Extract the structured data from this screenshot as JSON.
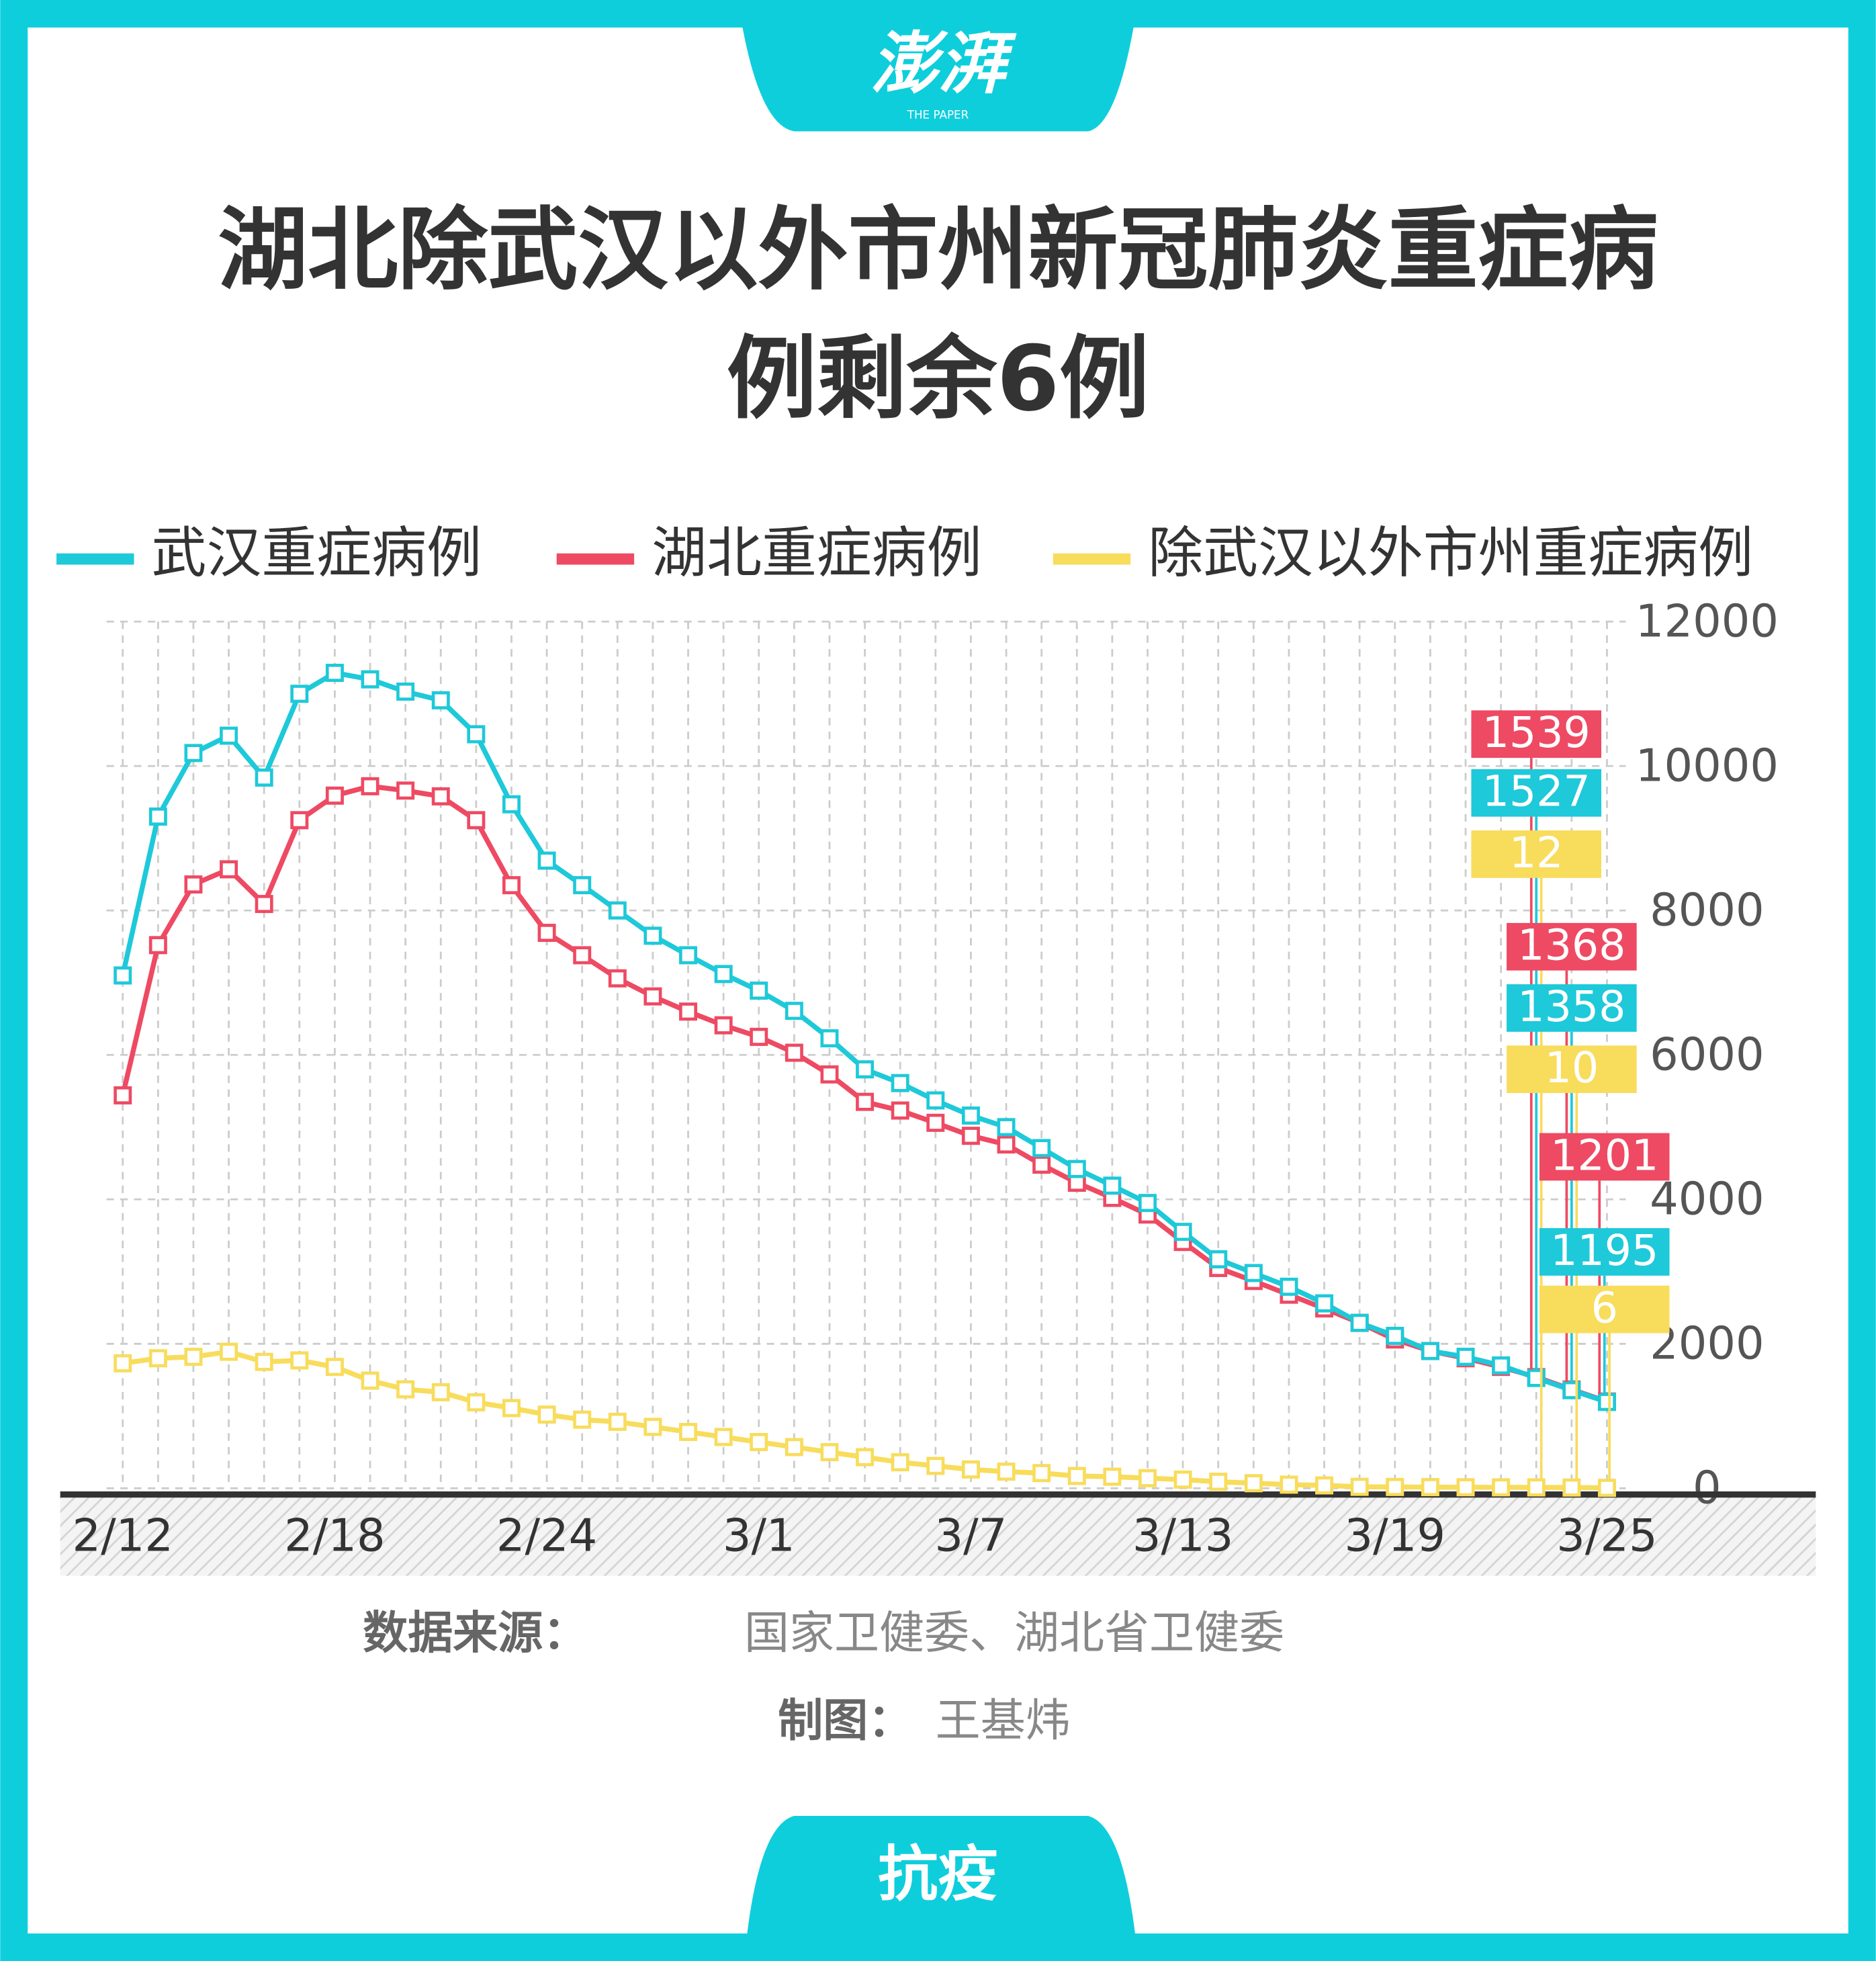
{
  "logo": {
    "name": "澎湃",
    "subtitle": "THE PAPER"
  },
  "chart_data": {
    "type": "line",
    "title": [
      "湖北除武汉以外市州新冠肺炎重症病",
      "例剩余6例"
    ],
    "categories": [
      "2/12",
      null,
      null,
      null,
      null,
      null,
      "2/18",
      null,
      null,
      null,
      null,
      null,
      "2/24",
      null,
      null,
      null,
      null,
      null,
      "3/1",
      null,
      null,
      null,
      null,
      null,
      "3/7",
      null,
      null,
      null,
      null,
      null,
      "3/13",
      null,
      null,
      null,
      null,
      null,
      "3/19",
      null,
      null,
      null,
      null,
      null,
      "3/25"
    ],
    "series": [
      {
        "name": "武汉重症病例",
        "color": "#1ec9d9",
        "values": [
          7100,
          9300,
          10180,
          10420,
          9840,
          11000,
          11290,
          11200,
          11030,
          10910,
          10440,
          9470,
          8690,
          8350,
          8000,
          7650,
          7380,
          7120,
          6890,
          6610,
          6230,
          5800,
          5610,
          5370,
          5160,
          5000,
          4710,
          4420,
          4190,
          3950,
          3550,
          3170,
          2980,
          2790,
          2560,
          2290,
          2110,
          1900,
          1820,
          1700,
          1527,
          1358,
          1195
        ]
      },
      {
        "name": "湖北重症病例",
        "color": "#ee4a63",
        "values": [
          5440,
          7520,
          8360,
          8570,
          8090,
          9250,
          9590,
          9720,
          9660,
          9580,
          9250,
          8350,
          7690,
          7380,
          7060,
          6810,
          6600,
          6410,
          6250,
          6030,
          5730,
          5350,
          5230,
          5060,
          4880,
          4760,
          4480,
          4230,
          4020,
          3790,
          3410,
          3050,
          2870,
          2680,
          2490,
          2290,
          2060,
          1900,
          1800,
          1680,
          1539,
          1368,
          1201
        ]
      },
      {
        "name": "除武汉以外市州重症病例",
        "color": "#f8dc5c",
        "values": [
          1730,
          1800,
          1820,
          1890,
          1750,
          1770,
          1680,
          1490,
          1370,
          1330,
          1190,
          1110,
          1020,
          950,
          920,
          850,
          780,
          710,
          640,
          570,
          500,
          430,
          360,
          310,
          260,
          230,
          210,
          170,
          160,
          140,
          120,
          90,
          70,
          50,
          40,
          20,
          18,
          16,
          14,
          13,
          12,
          10,
          6
        ]
      }
    ],
    "ylim": [
      0,
      12000
    ],
    "yticks": [
      0,
      2000,
      4000,
      6000,
      8000,
      10000,
      12000
    ],
    "grid": true,
    "legend": "top"
  },
  "source": {
    "label": "数据来源：",
    "text": "国家卫健委、湖北省卫健委"
  },
  "credit": {
    "label": "制图：",
    "text": "王基炜"
  },
  "footer": "抗疫"
}
